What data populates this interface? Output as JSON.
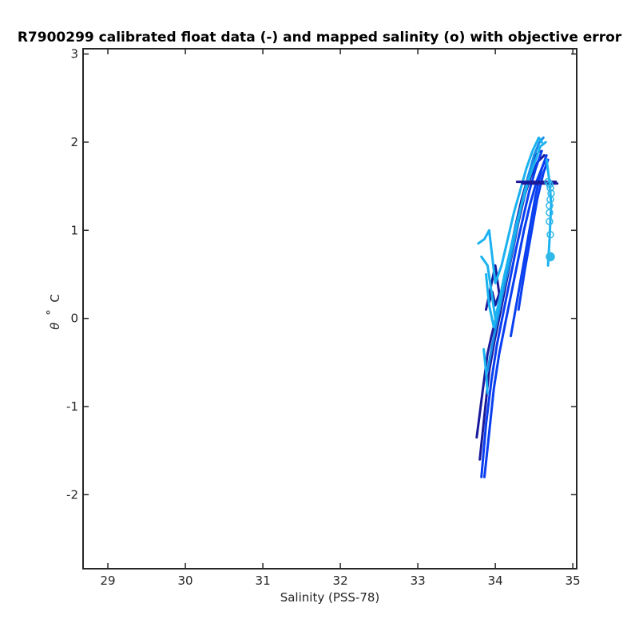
{
  "chart_data": {
    "type": "line",
    "title": "R7900299 calibrated float data (-) and mapped salinity (o) with objective error",
    "xlabel": "Salinity (PSS-78)",
    "ylabel_symbol": "θ",
    "ylabel_degree": "°",
    "ylabel_unit": "C",
    "xlim": [
      28.68,
      35.05
    ],
    "ylim": [
      -2.84,
      3.06
    ],
    "xticks": [
      29,
      30,
      31,
      32,
      33,
      34,
      35
    ],
    "yticks": [
      -2,
      -1,
      0,
      1,
      2,
      3
    ],
    "grid": false,
    "legend": "none",
    "colors": {
      "axis": "#262626",
      "dark": "#1a1a9c",
      "mid": "#0a3ff0",
      "light": "#1ab2f0",
      "mapped": "#30b8e8"
    },
    "series": [
      {
        "color": "#1a1a9c",
        "x": [
          33.76,
          33.84,
          33.9,
          33.95,
          34.02,
          34.1,
          34.18,
          34.26,
          34.34,
          34.42,
          34.5,
          34.57
        ],
        "y": [
          -1.35,
          -0.8,
          -0.4,
          -0.2,
          0.05,
          0.35,
          0.7,
          1.05,
          1.35,
          1.6,
          1.82,
          1.9
        ]
      },
      {
        "color": "#1a1a9c",
        "x": [
          33.8,
          33.86,
          33.92,
          33.99,
          34.06,
          34.14,
          34.22,
          34.3,
          34.38,
          34.46,
          34.55,
          34.63
        ],
        "y": [
          -1.6,
          -1.1,
          -0.6,
          -0.25,
          0.05,
          0.4,
          0.75,
          1.1,
          1.4,
          1.62,
          1.78,
          1.85
        ]
      },
      {
        "color": "#1a1a9c",
        "x": [
          33.88,
          33.94,
          34.0,
          34.05,
          34.0,
          33.96,
          33.92
        ],
        "y": [
          0.1,
          0.35,
          0.6,
          0.28,
          0.15,
          0.3,
          0.18
        ]
      },
      {
        "color": "#0a3ff0",
        "x": [
          33.82,
          33.88,
          33.95,
          34.02,
          34.1,
          34.18,
          34.27,
          34.36,
          34.44,
          34.52,
          34.6
        ],
        "y": [
          -1.8,
          -1.2,
          -0.7,
          -0.3,
          0.05,
          0.4,
          0.8,
          1.15,
          1.45,
          1.7,
          1.9
        ]
      },
      {
        "color": "#0a3ff0",
        "x": [
          33.86,
          33.92,
          33.98,
          34.05,
          34.13,
          34.21,
          34.29,
          34.37,
          34.45,
          34.53,
          34.62,
          34.67
        ],
        "y": [
          -1.8,
          -1.3,
          -0.8,
          -0.4,
          -0.05,
          0.3,
          0.65,
          1.0,
          1.3,
          1.55,
          1.75,
          1.8
        ]
      },
      {
        "color": "#0a3ff0",
        "x": [
          34.2,
          34.28,
          34.36,
          34.44,
          34.52,
          34.6,
          34.66
        ],
        "y": [
          -0.2,
          0.2,
          0.6,
          1.0,
          1.4,
          1.7,
          1.85
        ]
      },
      {
        "color": "#0a3ff0",
        "x": [
          34.3,
          34.38,
          34.46,
          34.54,
          34.62,
          34.68
        ],
        "y": [
          0.1,
          0.55,
          0.95,
          1.35,
          1.65,
          1.8
        ]
      },
      {
        "color": "#1a8ee8",
        "x": [
          33.9,
          33.96,
          34.03,
          34.1,
          34.18,
          34.26,
          34.34,
          34.42,
          34.5,
          34.57,
          34.62
        ],
        "y": [
          -0.6,
          -0.3,
          0.0,
          0.3,
          0.6,
          0.95,
          1.3,
          1.6,
          1.85,
          2.0,
          2.05
        ]
      },
      {
        "color": "#1ab2f0",
        "x": [
          33.78,
          33.86,
          33.92,
          33.96,
          34.0,
          34.08,
          34.16,
          34.24,
          34.32,
          34.4,
          34.48,
          34.56,
          34.6
        ],
        "y": [
          0.85,
          0.9,
          1.0,
          0.7,
          0.4,
          0.6,
          0.9,
          1.2,
          1.45,
          1.7,
          1.9,
          2.05,
          2.0
        ]
      },
      {
        "color": "#1ab2f0",
        "x": [
          33.82,
          33.9,
          33.95,
          34.0,
          34.05,
          34.12,
          34.2,
          34.28,
          34.36,
          34.44,
          34.52,
          34.58,
          34.65
        ],
        "y": [
          0.7,
          0.6,
          0.3,
          0.0,
          0.2,
          0.5,
          0.8,
          1.1,
          1.35,
          1.6,
          1.8,
          1.95,
          2.0
        ]
      },
      {
        "color": "#1ab2f0",
        "x": [
          33.88,
          33.92,
          33.98,
          34.04,
          34.1,
          34.18,
          34.26,
          34.34,
          34.42,
          34.5
        ],
        "y": [
          0.5,
          0.15,
          -0.1,
          0.1,
          0.4,
          0.7,
          1.0,
          1.3,
          1.55,
          1.75
        ]
      },
      {
        "color": "#1ab2f0",
        "x": [
          33.85,
          33.88,
          33.9
        ],
        "y": [
          -0.35,
          -0.6,
          -0.85
        ]
      },
      {
        "color": "#1a1a9c",
        "x": [
          34.28,
          34.78
        ],
        "y": [
          1.55,
          1.55
        ]
      },
      {
        "color": "#1a1a9c",
        "x": [
          34.35,
          34.8
        ],
        "y": [
          1.53,
          1.53
        ]
      },
      {
        "color": "#1ab2f0",
        "x": [
          34.66,
          34.7,
          34.72,
          34.71,
          34.7,
          34.68
        ],
        "y": [
          1.8,
          1.55,
          1.3,
          1.1,
          0.9,
          0.6
        ]
      }
    ],
    "mapped": {
      "color": "#30b8e8",
      "x": [
        34.68,
        34.7,
        34.71,
        34.72,
        34.71,
        34.7,
        34.7,
        34.7,
        34.71,
        34.71
      ],
      "y": [
        1.55,
        1.52,
        1.48,
        1.42,
        1.35,
        1.28,
        1.2,
        1.1,
        0.95,
        0.7
      ]
    }
  }
}
